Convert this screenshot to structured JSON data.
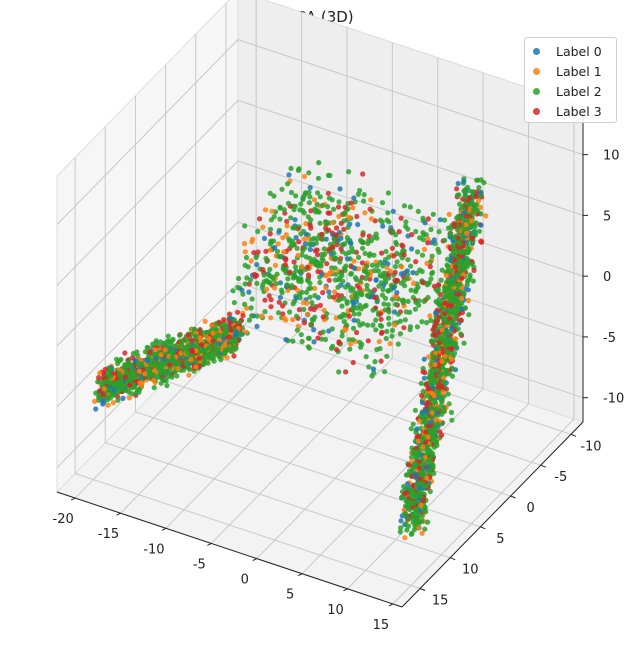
{
  "title": "PCA (3D)",
  "colors": {
    "pane": "#f3f3f3",
    "pane_edge": "#dddddd",
    "grid": "#c8c8c8",
    "axis": "#222222",
    "label_0": "#1f77b4",
    "label_1": "#ff7f0e",
    "label_2": "#2ca02c",
    "label_3": "#d62728"
  },
  "legend": {
    "items": [
      {
        "label": "Label 0",
        "color": "#1f77b4"
      },
      {
        "label": "Label 1",
        "color": "#ff7f0e"
      },
      {
        "label": "Label 2",
        "color": "#2ca02c"
      },
      {
        "label": "Label 3",
        "color": "#d62728"
      }
    ],
    "placement": "top-right"
  },
  "chart_data": {
    "type": "scatter",
    "projection": "3d",
    "title": "PCA (3D)",
    "xlabel": "",
    "ylabel": "",
    "zlabel": "",
    "x_ticks": [
      -20,
      -15,
      -10,
      -5,
      0,
      5,
      10,
      15
    ],
    "y_ticks": [
      -10,
      -5,
      0,
      5,
      10,
      15
    ],
    "z_ticks": [
      -10,
      -5,
      0,
      5,
      10
    ],
    "xlim": [
      -22,
      16
    ],
    "ylim": [
      -12,
      18
    ],
    "zlim": [
      -12,
      14
    ],
    "grid": true,
    "series": [
      {
        "name": "Label 0",
        "color": "#1f77b4"
      },
      {
        "name": "Label 1",
        "color": "#ff7f0e"
      },
      {
        "name": "Label 2",
        "color": "#2ca02c"
      },
      {
        "name": "Label 3",
        "color": "#d62728"
      }
    ],
    "description_of_shape": "points form an arch: a dense arm along negative x at low depth, a sparse top bridge around z 5..10, and a dense arm descending in y toward low z"
  }
}
